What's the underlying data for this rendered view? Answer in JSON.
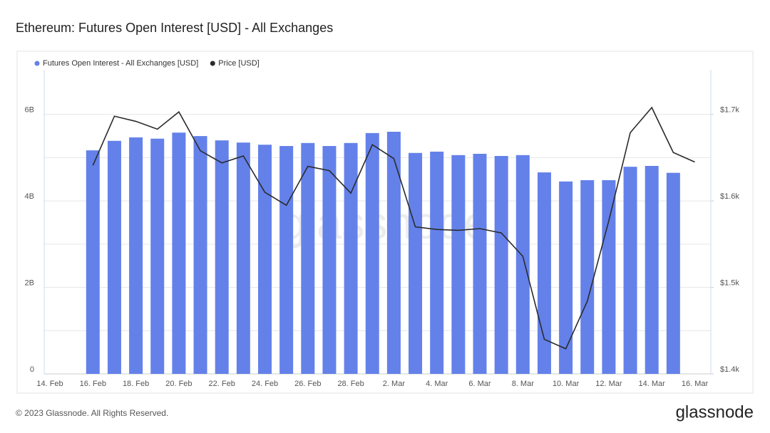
{
  "chart_data": {
    "type": "bar-line",
    "title": "Ethereum: Futures Open Interest [USD] - All Exchanges",
    "watermark": "glassnode",
    "footer": "© 2023 Glassnode. All Rights Reserved.",
    "logo": "glassnode",
    "categories": [
      "14. Feb",
      null,
      "16. Feb",
      null,
      "18. Feb",
      null,
      "20. Feb",
      null,
      "22. Feb",
      null,
      "24. Feb",
      null,
      "26. Feb",
      null,
      "28. Feb",
      null,
      "2. Mar",
      null,
      "4. Mar",
      null,
      "6. Mar",
      null,
      "8. Mar",
      null,
      "10. Mar",
      null,
      "12. Mar",
      null,
      "14. Mar",
      null,
      "16. Mar"
    ],
    "series": [
      {
        "name": "Futures Open Interest - All Exchanges [USD]",
        "color": "#6481ea",
        "type": "bar",
        "values": [
          null,
          null,
          5170000000,
          5390000000,
          5470000000,
          5440000000,
          5580000000,
          5500000000,
          5400000000,
          5350000000,
          5300000000,
          5270000000,
          5340000000,
          5270000000,
          5340000000,
          5570000000,
          5600000000,
          5110000000,
          5140000000,
          5060000000,
          5090000000,
          5040000000,
          5060000000,
          4660000000,
          4450000000,
          4480000000,
          4480000000,
          4790000000,
          4810000000,
          4650000000,
          null
        ]
      },
      {
        "name": "Price [USD]",
        "color": "#2b2b2b",
        "type": "line",
        "axis": "y2",
        "values": [
          null,
          null,
          1641,
          1698,
          1692,
          1683,
          1703,
          1658,
          1644,
          1652,
          1610,
          1595,
          1640,
          1635,
          1609,
          1665,
          1649,
          1570,
          1567,
          1566,
          1568,
          1563,
          1536,
          1440,
          1429,
          1484,
          1577,
          1679,
          1708,
          1656,
          1645
        ]
      }
    ],
    "ylim": [
      0,
      7000000000
    ],
    "yticks": [
      0,
      {
        "value": 2000000000,
        "label": "2B"
      },
      {
        "value": 4000000000,
        "label": "4B"
      },
      {
        "value": 6000000000,
        "label": "6B"
      }
    ],
    "minor_yticks": [
      1000000000,
      3000000000,
      5000000000
    ],
    "y2lim": [
      1400,
      1750
    ],
    "y2ticks": [
      {
        "value": 1400,
        "label": "$1.4k"
      },
      {
        "value": 1500,
        "label": "$1.5k"
      },
      {
        "value": 1600,
        "label": "$1.6k"
      },
      {
        "value": 1700,
        "label": "$1.7k"
      }
    ],
    "grid": true
  }
}
